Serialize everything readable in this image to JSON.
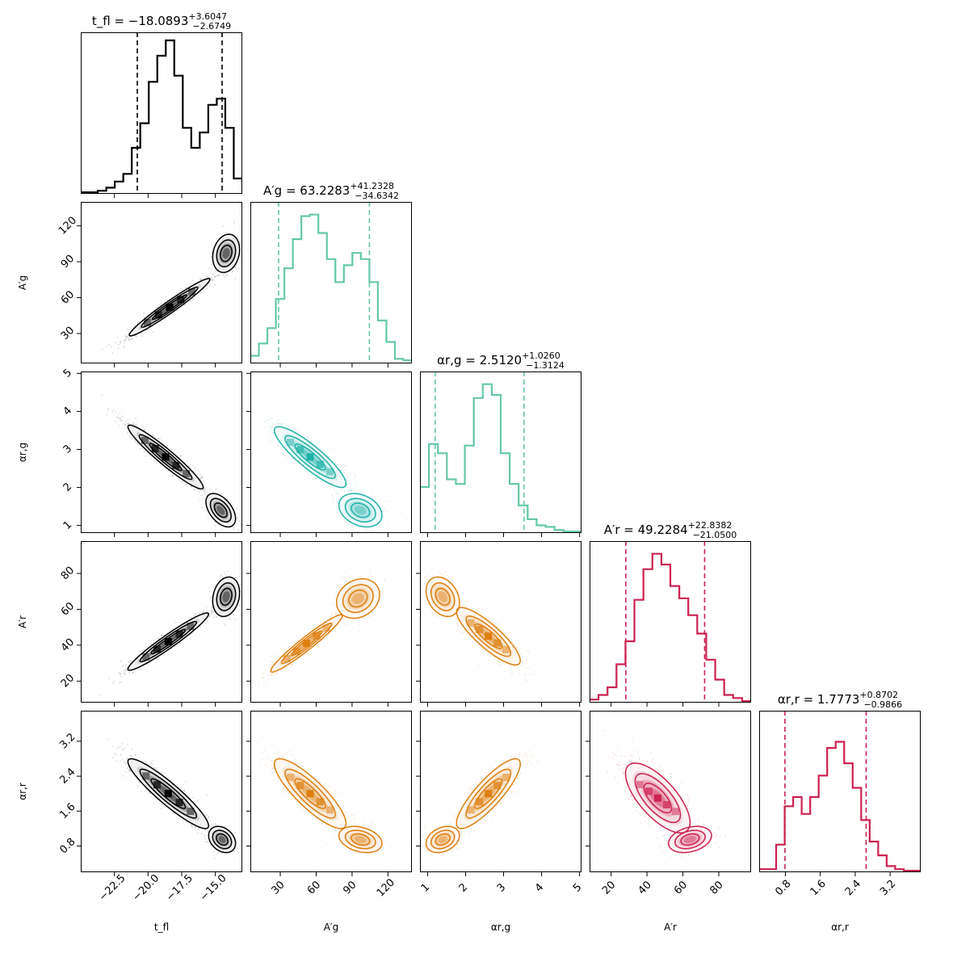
{
  "chart_data": {
    "type": "corner",
    "parameters": [
      {
        "key": "t_fl",
        "axis_label": "t_fl",
        "title_label": "t_fl",
        "median": "−18.0893",
        "plus": "+3.6047",
        "minus": "−2.6749",
        "range": [
          -25.0,
          -13.0
        ],
        "ticks": [
          -22.5,
          -20.0,
          -17.5,
          -15.0
        ],
        "tick_labels": [
          "−22.5",
          "−20.0",
          "−17.5",
          "−15.0"
        ],
        "lo": -20.8,
        "hi": -14.5,
        "color": "#000000",
        "hist": [
          0.01,
          0.01,
          0.02,
          0.04,
          0.08,
          0.13,
          0.3,
          0.46,
          0.73,
          0.9,
          1.0,
          0.77,
          0.43,
          0.3,
          0.4,
          0.58,
          0.62,
          0.43,
          0.1
        ]
      },
      {
        "key": "A_g",
        "axis_label": "A′g",
        "title_label": "A′g",
        "median": "63.2283",
        "plus": "+41.2328",
        "minus": "−34.6342",
        "range": [
          5.0,
          140.0
        ],
        "ticks": [
          30,
          60,
          90,
          120
        ],
        "tick_labels": [
          "30",
          "60",
          "90",
          "120"
        ],
        "lo": 28.6,
        "hi": 104.5,
        "color": "#66c8a5",
        "hist": [
          0.05,
          0.13,
          0.23,
          0.42,
          0.62,
          0.81,
          0.96,
          0.97,
          0.85,
          0.68,
          0.53,
          0.64,
          0.72,
          0.68,
          0.53,
          0.28,
          0.14,
          0.03,
          0.02
        ]
      },
      {
        "key": "alpha_rg",
        "axis_label": "αr,g",
        "title_label": "αr,g",
        "median": "2.5120",
        "plus": "+1.0260",
        "minus": "−1.3124",
        "range": [
          0.8,
          5.05
        ],
        "ticks": [
          1,
          2,
          3,
          4,
          5
        ],
        "tick_labels": [
          "1",
          "2",
          "3",
          "4",
          "5"
        ],
        "lo": 1.2,
        "hi": 3.54,
        "color": "#66c8a5",
        "hist": [
          0.3,
          0.58,
          0.52,
          0.35,
          0.32,
          0.57,
          0.88,
          0.97,
          0.9,
          0.52,
          0.32,
          0.18,
          0.09,
          0.05,
          0.04,
          0.02,
          0.01,
          0.01
        ]
      },
      {
        "key": "A_r",
        "axis_label": "A′r",
        "title_label": "A′r",
        "median": "49.2284",
        "plus": "+22.8382",
        "minus": "−21.0500",
        "range": [
          8.0,
          98.0
        ],
        "ticks": [
          20,
          40,
          60,
          80
        ],
        "tick_labels": [
          "20",
          "40",
          "60",
          "80"
        ],
        "lo": 28.2,
        "hi": 72.1,
        "color": "#cc2250",
        "hist": [
          0.02,
          0.05,
          0.1,
          0.25,
          0.4,
          0.67,
          0.87,
          0.97,
          0.9,
          0.76,
          0.68,
          0.57,
          0.45,
          0.28,
          0.15,
          0.05,
          0.03,
          0.01
        ]
      },
      {
        "key": "alpha_rr",
        "axis_label": "αr,r",
        "title_label": "αr,r",
        "median": "1.7773",
        "plus": "+0.8702",
        "minus": "−0.9866",
        "range": [
          0.2,
          3.9
        ],
        "ticks": [
          0.8,
          1.6,
          2.4,
          3.2
        ],
        "tick_labels": [
          "0.8",
          "1.6",
          "2.4",
          "3.2"
        ],
        "lo": 0.79,
        "hi": 2.65,
        "color": "#cc2250",
        "hist": [
          0.02,
          0.02,
          0.18,
          0.43,
          0.49,
          0.38,
          0.49,
          0.63,
          0.81,
          0.85,
          0.71,
          0.55,
          0.34,
          0.2,
          0.11,
          0.04,
          0.02,
          0.01,
          0.01
        ]
      }
    ],
    "pair_colors": {
      "1,0": "#000000",
      "2,0": "#000000",
      "3,0": "#000000",
      "4,0": "#000000",
      "2,1": "#20b2aa",
      "3,1": "#dd7f10",
      "4,1": "#dd7f10",
      "3,2": "#dd7f10",
      "4,2": "#dd7f10",
      "4,3": "#cc2250"
    },
    "pair_modes": {
      "1,0": [
        {
          "mx": -18.4,
          "my": 52.0,
          "sx": 1.5,
          "sy": 12.0,
          "rho": 0.97,
          "w": 0.78
        },
        {
          "mx": -14.2,
          "my": 97.0,
          "sx": 0.5,
          "sy": 8.0,
          "rho": 0.2,
          "w": 0.22
        }
      ],
      "2,0": [
        {
          "mx": -18.7,
          "my": 2.8,
          "sx": 1.4,
          "sy": 0.42,
          "rho": -0.95,
          "w": 0.8
        },
        {
          "mx": -14.6,
          "my": 1.4,
          "sx": 0.55,
          "sy": 0.22,
          "rho": -0.5,
          "w": 0.2
        }
      ],
      "3,0": [
        {
          "mx": -18.5,
          "my": 42.0,
          "sx": 1.5,
          "sy": 8.0,
          "rho": 0.96,
          "w": 0.78
        },
        {
          "mx": -14.2,
          "my": 67.0,
          "sx": 0.5,
          "sy": 5.5,
          "rho": 0.2,
          "w": 0.22
        }
      ],
      "4,0": [
        {
          "mx": -18.5,
          "my": 2.0,
          "sx": 1.5,
          "sy": 0.4,
          "rho": -0.92,
          "w": 0.8
        },
        {
          "mx": -14.5,
          "my": 0.95,
          "sx": 0.5,
          "sy": 0.15,
          "rho": -0.3,
          "w": 0.2
        }
      ],
      "2,1": [
        {
          "mx": 55.0,
          "my": 2.8,
          "sx": 15.0,
          "sy": 0.4,
          "rho": -0.88,
          "w": 0.78
        },
        {
          "mx": 97.0,
          "my": 1.4,
          "sx": 9.0,
          "sy": 0.22,
          "rho": -0.3,
          "w": 0.22
        }
      ],
      "3,1": [
        {
          "mx": 52.0,
          "my": 41.0,
          "sx": 15.0,
          "sy": 8.0,
          "rho": 0.96,
          "w": 0.78
        },
        {
          "mx": 95.0,
          "my": 66.0,
          "sx": 9.0,
          "sy": 5.5,
          "rho": 0.2,
          "w": 0.22
        }
      ],
      "4,1": [
        {
          "mx": 55.0,
          "my": 2.0,
          "sx": 15.0,
          "sy": 0.4,
          "rho": -0.85,
          "w": 0.78
        },
        {
          "mx": 97.0,
          "my": 0.95,
          "sx": 9.0,
          "sy": 0.15,
          "rho": -0.3,
          "w": 0.22
        }
      ],
      "3,2": [
        {
          "mx": 2.6,
          "my": 45.0,
          "sx": 0.42,
          "sy": 8.0,
          "rho": -0.85,
          "w": 0.78
        },
        {
          "mx": 1.4,
          "my": 67.0,
          "sx": 0.22,
          "sy": 5.5,
          "rho": -0.3,
          "w": 0.22
        }
      ],
      "4,2": [
        {
          "mx": 2.6,
          "my": 2.0,
          "sx": 0.42,
          "sy": 0.4,
          "rho": 0.85,
          "w": 0.8
        },
        {
          "mx": 1.4,
          "my": 0.95,
          "sx": 0.22,
          "sy": 0.15,
          "rho": 0.3,
          "w": 0.2
        }
      ],
      "4,3": [
        {
          "mx": 46.0,
          "my": 1.9,
          "sx": 9.0,
          "sy": 0.4,
          "rho": -0.7,
          "w": 0.8
        },
        {
          "mx": 64.0,
          "my": 0.95,
          "sx": 6.0,
          "sy": 0.15,
          "rho": 0.3,
          "w": 0.2
        }
      ]
    }
  }
}
